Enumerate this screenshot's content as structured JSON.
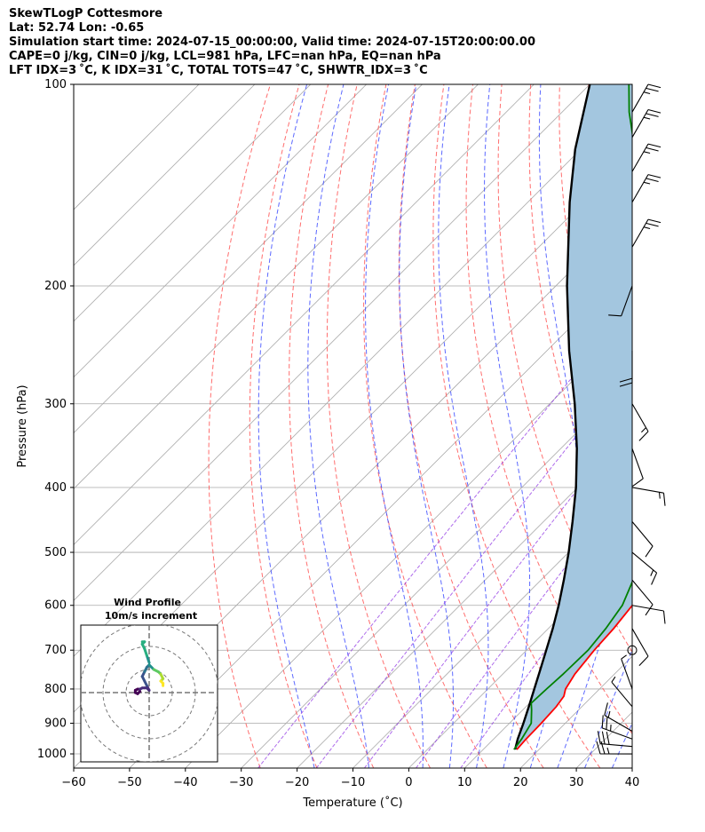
{
  "header": {
    "lines": [
      "SkewTLogP Cottesmore",
      "Lat: 52.74   Lon: -0.65",
      "Simulation start time: 2024-07-15_00:00:00, Valid time: 2024-07-15T20:00:00.00",
      "CAPE=0 j/kg, CIN=0 j/kg, LCL=981 hPa, LFC=nan hPa, EQ=nan hPa",
      "LFT IDX=3 ˚C, K IDX=31 ˚C, TOTAL TOTS=47 ˚C, SHWTR_IDX=3 ˚C"
    ]
  },
  "chart_data": {
    "type": "skewt-logp",
    "xlabel": "Temperature (˚C)",
    "ylabel": "Pressure (hPa)",
    "xlim": [
      -60,
      40
    ],
    "ylim": [
      1050,
      100
    ],
    "y_scale": "log",
    "x_ticks": [
      "−60",
      "−50",
      "−40",
      "−30",
      "−20",
      "−10",
      "0",
      "10",
      "20",
      "30",
      "40"
    ],
    "y_ticks": [
      {
        "p": 100,
        "label": "100"
      },
      {
        "p": 200,
        "label": "200"
      },
      {
        "p": 300,
        "label": "300"
      },
      {
        "p": 400,
        "label": "400"
      },
      {
        "p": 500,
        "label": "500"
      },
      {
        "p": 600,
        "label": "600"
      },
      {
        "p": 700,
        "label": "700"
      },
      {
        "p": 800,
        "label": "800"
      },
      {
        "p": 900,
        "label": "900"
      },
      {
        "p": 1000,
        "label": "1000"
      }
    ],
    "grid": true,
    "colors": {
      "temperature": "#ff0000",
      "dewpoint": "#008000",
      "parcel": "#000000",
      "shading": "#a3c6df",
      "dry_adiabat": "#ff5555",
      "moist_adiabat": "#3344ff",
      "mixing_ratio": "#8a2be2",
      "isotherm": "#a9a9a9"
    },
    "temperature": [
      [
        985,
        16.0
      ],
      [
        950,
        15.8
      ],
      [
        900,
        15.7
      ],
      [
        850,
        15.4
      ],
      [
        820,
        14.9
      ],
      [
        800,
        13.9
      ],
      [
        760,
        12.9
      ],
      [
        700,
        12.1
      ],
      [
        650,
        11.7
      ],
      [
        600,
        10.9
      ],
      [
        550,
        8.3
      ],
      [
        500,
        5.8
      ],
      [
        450,
        3.2
      ],
      [
        400,
        1.6
      ],
      [
        350,
        -1.4
      ],
      [
        310,
        -5.7
      ],
      [
        280,
        -8.6
      ],
      [
        265,
        -9.1
      ],
      [
        250,
        -7.5
      ],
      [
        230,
        -6.0
      ],
      [
        210,
        -5.0
      ],
      [
        190,
        -4.8
      ],
      [
        170,
        -4.8
      ],
      [
        150,
        -5.9
      ],
      [
        130,
        -9.5
      ],
      [
        120,
        -12.5
      ],
      [
        110,
        -14.0
      ],
      [
        100,
        -16.5
      ]
    ],
    "dewpoint": [
      [
        985,
        15.5
      ],
      [
        950,
        15.0
      ],
      [
        900,
        13.9
      ],
      [
        860,
        11.6
      ],
      [
        840,
        10.3
      ],
      [
        800,
        10.5
      ],
      [
        760,
        10.8
      ],
      [
        700,
        11.0
      ],
      [
        650,
        10.3
      ],
      [
        600,
        9.1
      ],
      [
        550,
        6.5
      ],
      [
        500,
        2.5
      ],
      [
        450,
        0.0
      ],
      [
        420,
        -1.6
      ],
      [
        380,
        -6.7
      ],
      [
        350,
        -7.5
      ],
      [
        300,
        -10.5
      ],
      [
        270,
        -14.0
      ],
      [
        250,
        -19.0
      ],
      [
        230,
        -24.6
      ],
      [
        215,
        -32.6
      ],
      [
        200,
        -41.5
      ],
      [
        190,
        -45.0
      ],
      [
        170,
        -50.0
      ],
      [
        150,
        -58.0
      ],
      [
        130,
        -68.0
      ],
      [
        110,
        -78.0
      ],
      [
        100,
        -83.0
      ]
    ],
    "parcel": [
      [
        985,
        15.7
      ],
      [
        950,
        14.3
      ],
      [
        900,
        12.5
      ],
      [
        850,
        10.5
      ],
      [
        800,
        8.3
      ],
      [
        750,
        6.0
      ],
      [
        700,
        3.5
      ],
      [
        650,
        0.8
      ],
      [
        600,
        -2.3
      ],
      [
        550,
        -5.9
      ],
      [
        500,
        -10.0
      ],
      [
        450,
        -14.8
      ],
      [
        400,
        -20.3
      ],
      [
        350,
        -27.1
      ],
      [
        300,
        -35.5
      ],
      [
        250,
        -46.0
      ],
      [
        200,
        -58.0
      ],
      [
        150,
        -72.5
      ],
      [
        125,
        -81.0
      ],
      [
        100,
        -90.0
      ]
    ],
    "dry_adiabats_theta_c": [
      -30,
      -20,
      -10,
      0,
      10,
      20,
      30,
      40,
      50,
      60,
      70,
      80,
      90,
      100,
      110,
      120,
      130,
      140,
      150,
      160,
      170
    ],
    "moist_adiabats_t1000_c": [
      -20,
      -10,
      0,
      5,
      10,
      15,
      20,
      25,
      30,
      35,
      40,
      45
    ],
    "mixing_ratios_gkg": [
      0.4,
      1.0,
      2.0,
      4.0,
      7.0
    ],
    "wind_barbs": [
      {
        "p": 1000,
        "speed_kt": 25,
        "dir_deg": 270
      },
      {
        "p": 975,
        "speed_kt": 30,
        "dir_deg": 275
      },
      {
        "p": 950,
        "speed_kt": 25,
        "dir_deg": 290
      },
      {
        "p": 925,
        "speed_kt": 15,
        "dir_deg": 300
      },
      {
        "p": 850,
        "speed_kt": 5,
        "dir_deg": 320
      },
      {
        "p": 800,
        "speed_kt": 5,
        "dir_deg": 340
      },
      {
        "p": 700,
        "speed_kt": 0,
        "dir_deg": 0
      },
      {
        "p": 650,
        "speed_kt": 10,
        "dir_deg": 150
      },
      {
        "p": 600,
        "speed_kt": 10,
        "dir_deg": 100
      },
      {
        "p": 550,
        "speed_kt": 10,
        "dir_deg": 140
      },
      {
        "p": 500,
        "speed_kt": 15,
        "dir_deg": 130
      },
      {
        "p": 450,
        "speed_kt": 10,
        "dir_deg": 140
      },
      {
        "p": 400,
        "speed_kt": 15,
        "dir_deg": 100
      },
      {
        "p": 350,
        "speed_kt": 10,
        "dir_deg": 160
      },
      {
        "p": 300,
        "speed_kt": 15,
        "dir_deg": 150
      },
      {
        "p": 250,
        "speed_kt": 20,
        "dir_deg": 180
      },
      {
        "p": 200,
        "speed_kt": 10,
        "dir_deg": 200
      },
      {
        "p": 175,
        "speed_kt": 25,
        "dir_deg": 30
      },
      {
        "p": 150,
        "speed_kt": 25,
        "dir_deg": 30
      },
      {
        "p": 135,
        "speed_kt": 25,
        "dir_deg": 30
      },
      {
        "p": 120,
        "speed_kt": 25,
        "dir_deg": 30
      },
      {
        "p": 110,
        "speed_kt": 25,
        "dir_deg": 30
      }
    ],
    "hodograph": {
      "title": "Wind Profile",
      "subtitle": "10m/s increment",
      "ring_step_ms": 10,
      "max_ms": 30,
      "points_uv_ms": [
        [
          -4,
          0.5
        ],
        [
          -5,
          -0.5
        ],
        [
          -6,
          0
        ],
        [
          -6,
          1
        ],
        [
          -5,
          1.5
        ],
        [
          -4,
          1.5
        ],
        [
          -3,
          2
        ],
        [
          -2,
          2
        ],
        [
          -1,
          2
        ],
        [
          0,
          1
        ],
        [
          -1,
          3
        ],
        [
          -2,
          5
        ],
        [
          -3,
          7
        ],
        [
          -2,
          9
        ],
        [
          -1,
          11
        ],
        [
          0,
          12
        ],
        [
          2,
          10
        ],
        [
          4,
          9
        ],
        [
          5,
          8
        ],
        [
          6,
          6
        ],
        [
          5,
          5
        ],
        [
          6,
          4
        ],
        [
          6,
          3
        ],
        [
          0,
          13
        ],
        [
          -1,
          16
        ],
        [
          -2,
          19
        ],
        [
          -3,
          21
        ],
        [
          -2,
          22
        ],
        [
          -3,
          22
        ]
      ]
    }
  }
}
